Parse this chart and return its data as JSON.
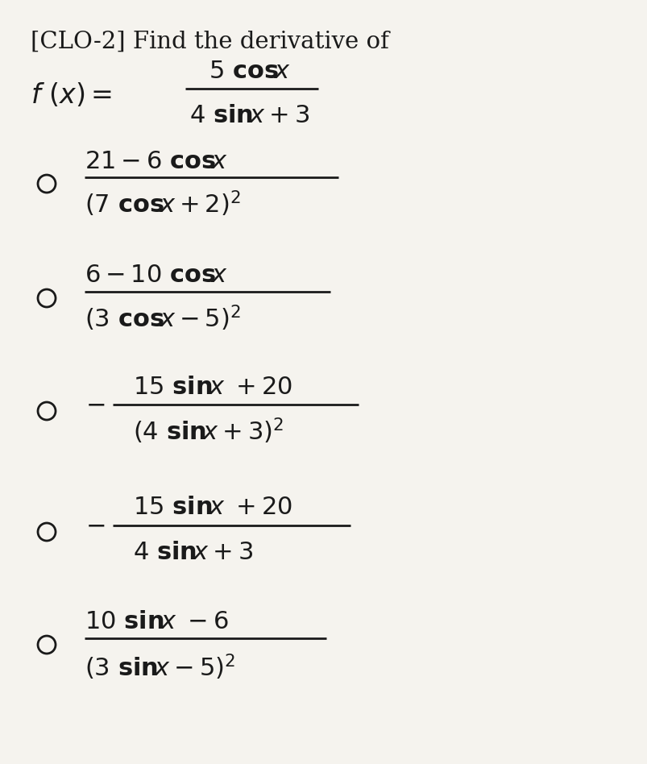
{
  "title": "[CLO-2] Find the derivative of",
  "background_color": "#f5f3ee",
  "text_color": "#1a1a1a",
  "fig_width": 8.04,
  "fig_height": 9.48,
  "title_fontsize": 21,
  "content_fontsize": 22,
  "small_fontsize": 19
}
